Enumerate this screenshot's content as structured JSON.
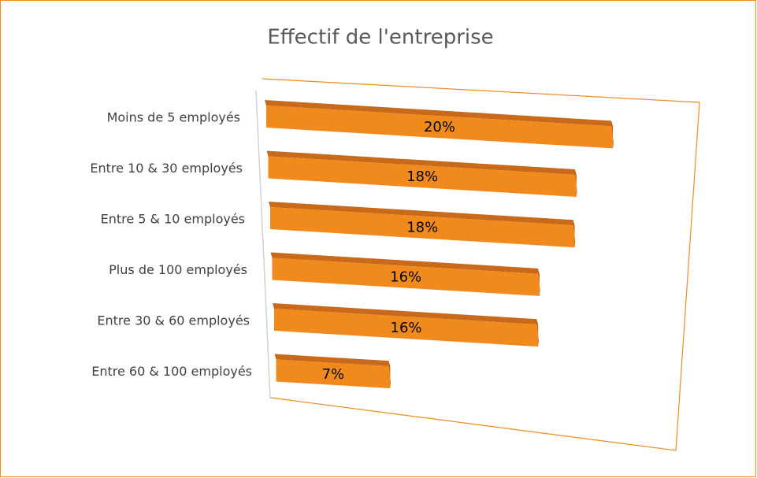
{
  "chart_data": {
    "type": "bar3d",
    "orientation": "horizontal",
    "title": "Effectif de l'entreprise",
    "categories": [
      "Moins de 5 employés",
      "Entre 10 & 30 employés",
      "Entre 5 & 10 employés",
      "Plus de 100 employés",
      "Entre 30 & 60 employés",
      "Entre 60 & 100 employés"
    ],
    "values": [
      20,
      18,
      18,
      16,
      16,
      7
    ],
    "value_labels": [
      "20%",
      "18%",
      "18%",
      "16%",
      "16%",
      "7%"
    ],
    "color": "#f08a1c"
  }
}
